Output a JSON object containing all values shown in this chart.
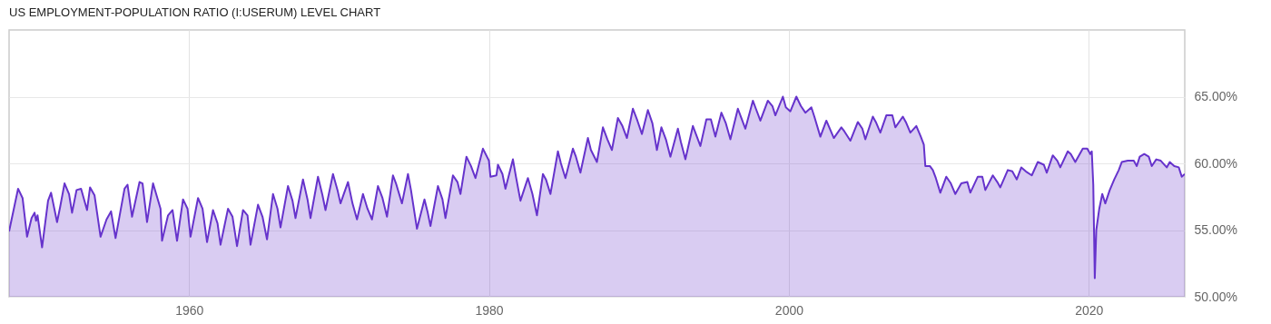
{
  "chart_data": {
    "type": "area",
    "title": "US EMPLOYMENT-POPULATION RATIO (I:USERUM) LEVEL CHART",
    "x": [
      1948.0,
      1948.6,
      1948.9,
      1949.2,
      1949.5,
      1949.7,
      1949.8,
      1949.9,
      1950.2,
      1950.6,
      1950.8,
      1951.2,
      1951.4,
      1951.7,
      1952.0,
      1952.2,
      1952.5,
      1952.8,
      1953.2,
      1953.4,
      1953.7,
      1954.1,
      1954.5,
      1954.8,
      1955.1,
      1955.7,
      1955.9,
      1956.2,
      1956.7,
      1956.9,
      1957.2,
      1957.6,
      1958.1,
      1958.2,
      1958.6,
      1958.9,
      1959.2,
      1959.6,
      1959.9,
      1960.1,
      1960.6,
      1960.9,
      1961.2,
      1961.6,
      1961.9,
      1962.1,
      1962.6,
      1962.9,
      1963.2,
      1963.6,
      1963.9,
      1964.1,
      1964.6,
      1964.9,
      1965.2,
      1965.6,
      1965.9,
      1966.1,
      1966.6,
      1966.9,
      1967.1,
      1967.6,
      1967.9,
      1968.1,
      1968.6,
      1968.9,
      1969.1,
      1969.6,
      1969.9,
      1970.1,
      1970.6,
      1970.9,
      1971.2,
      1971.6,
      1971.9,
      1972.2,
      1972.6,
      1972.9,
      1973.2,
      1973.6,
      1973.8,
      1974.2,
      1974.6,
      1974.8,
      1975.2,
      1975.7,
      1975.9,
      1976.1,
      1976.6,
      1976.9,
      1977.1,
      1977.6,
      1977.9,
      1978.1,
      1978.5,
      1978.8,
      1979.1,
      1979.6,
      1980.0,
      1980.1,
      1980.5,
      1980.6,
      1980.9,
      1981.1,
      1981.6,
      1981.8,
      1982.1,
      1982.6,
      1982.9,
      1983.2,
      1983.6,
      1983.8,
      1984.1,
      1984.6,
      1984.8,
      1985.1,
      1985.6,
      1985.8,
      1986.1,
      1986.6,
      1986.8,
      1987.2,
      1987.6,
      1987.9,
      1988.2,
      1988.6,
      1988.9,
      1989.2,
      1989.6,
      1989.9,
      1990.2,
      1990.6,
      1990.9,
      1991.2,
      1991.5,
      1991.8,
      1992.1,
      1992.6,
      1992.8,
      1993.1,
      1993.6,
      1993.8,
      1994.1,
      1994.5,
      1994.8,
      1995.1,
      1995.5,
      1995.8,
      1996.1,
      1996.6,
      1996.8,
      1997.1,
      1997.6,
      1997.8,
      1998.1,
      1998.6,
      1998.9,
      1999.1,
      1999.6,
      1999.8,
      2000.1,
      2000.5,
      2000.8,
      2001.1,
      2001.5,
      2001.7,
      2002.1,
      2002.5,
      2003.0,
      2003.5,
      2003.7,
      2004.1,
      2004.6,
      2004.9,
      2005.1,
      2005.6,
      2005.8,
      2006.1,
      2006.5,
      2006.9,
      2007.1,
      2007.6,
      2007.8,
      2008.1,
      2008.5,
      2008.8,
      2009.0,
      2009.1,
      2009.4,
      2009.6,
      2009.8,
      2010.1,
      2010.5,
      2010.8,
      2011.1,
      2011.5,
      2011.9,
      2012.1,
      2012.6,
      2012.9,
      2013.1,
      2013.6,
      2013.9,
      2014.1,
      2014.6,
      2014.9,
      2015.2,
      2015.5,
      2015.8,
      2016.2,
      2016.6,
      2017.0,
      2017.2,
      2017.6,
      2017.9,
      2018.1,
      2018.6,
      2018.8,
      2019.1,
      2019.6,
      2019.9,
      2020.1,
      2020.2,
      2020.3,
      2020.4,
      2020.5,
      2020.7,
      2020.9,
      2021.1,
      2021.4,
      2021.7,
      2022.0,
      2022.2,
      2022.6,
      2023.0,
      2023.2,
      2023.4,
      2023.7,
      2024.0,
      2024.2,
      2024.5,
      2024.8,
      2025.2,
      2025.4,
      2025.7,
      2026.0,
      2026.2,
      2026.4
    ],
    "series": [
      {
        "color": "#6633cc",
        "values": [
          54.9,
          58.1,
          57.4,
          54.5,
          55.9,
          56.3,
          55.7,
          56.1,
          53.7,
          57.2,
          57.8,
          55.6,
          56.7,
          58.5,
          57.7,
          56.3,
          58.0,
          58.1,
          56.5,
          58.2,
          57.6,
          54.5,
          55.8,
          56.4,
          54.4,
          58.1,
          58.4,
          56.0,
          58.6,
          58.5,
          55.6,
          58.5,
          56.6,
          54.2,
          56.1,
          56.5,
          54.2,
          57.3,
          56.6,
          54.5,
          57.4,
          56.6,
          54.1,
          56.5,
          55.5,
          53.9,
          56.6,
          56.0,
          53.8,
          56.5,
          56.1,
          53.9,
          56.9,
          56.0,
          54.3,
          57.7,
          56.6,
          55.2,
          58.3,
          57.2,
          55.9,
          58.8,
          57.3,
          55.9,
          59.0,
          57.6,
          56.5,
          59.2,
          58.0,
          57.0,
          58.6,
          57.0,
          55.8,
          57.7,
          56.6,
          55.8,
          58.3,
          57.4,
          56.0,
          59.1,
          58.5,
          57.0,
          59.2,
          58.0,
          55.1,
          57.3,
          56.4,
          55.3,
          58.3,
          57.3,
          55.9,
          59.1,
          58.6,
          57.7,
          60.5,
          59.8,
          58.9,
          61.1,
          60.2,
          59.0,
          59.1,
          59.9,
          59.2,
          58.1,
          60.3,
          59.0,
          57.2,
          58.9,
          57.7,
          56.1,
          59.2,
          58.8,
          57.7,
          60.9,
          60.0,
          58.9,
          61.1,
          60.5,
          59.3,
          61.9,
          61.0,
          60.1,
          62.7,
          61.8,
          61.0,
          63.4,
          62.8,
          61.9,
          64.1,
          63.2,
          62.2,
          64.0,
          63.0,
          61.0,
          62.7,
          61.8,
          60.5,
          62.6,
          61.6,
          60.3,
          62.8,
          62.2,
          61.3,
          63.3,
          63.3,
          62.0,
          63.8,
          63.0,
          61.8,
          64.1,
          63.5,
          62.6,
          64.7,
          64.1,
          63.2,
          64.7,
          64.3,
          63.6,
          65.0,
          64.2,
          63.9,
          65.0,
          64.3,
          63.8,
          64.2,
          63.5,
          62.0,
          63.2,
          61.9,
          62.7,
          62.4,
          61.7,
          63.1,
          62.6,
          61.8,
          63.5,
          63.1,
          62.3,
          63.6,
          63.6,
          62.7,
          63.5,
          63.1,
          62.3,
          62.8,
          62.0,
          61.4,
          59.8,
          59.8,
          59.5,
          58.9,
          57.8,
          59.0,
          58.5,
          57.7,
          58.5,
          58.6,
          57.8,
          59.0,
          59.0,
          58.0,
          59.1,
          58.6,
          58.2,
          59.5,
          59.4,
          58.8,
          59.7,
          59.4,
          59.1,
          60.1,
          59.9,
          59.3,
          60.6,
          60.2,
          59.7,
          60.9,
          60.7,
          60.1,
          61.1,
          61.1,
          60.7,
          60.9,
          58.4,
          51.4,
          55.0,
          56.6,
          57.7,
          57.0,
          58.0,
          58.8,
          59.5,
          60.1,
          60.2,
          60.2,
          59.8,
          60.5,
          60.7,
          60.5,
          59.8,
          60.3,
          60.2,
          59.7,
          60.1,
          59.8,
          59.7,
          59.0,
          59.2
        ]
      }
    ],
    "xlim": [
      1948.0,
      2026.4
    ],
    "xticks": [
      1960,
      1980,
      2000,
      2020
    ],
    "ylim": [
      50,
      70
    ],
    "yticks": [
      {
        "value": 50,
        "label": "50.00%"
      },
      {
        "value": 55,
        "label": "55.00%"
      },
      {
        "value": 60,
        "label": "60.00%"
      },
      {
        "value": 65,
        "label": "65.00%"
      }
    ],
    "grid": true
  }
}
